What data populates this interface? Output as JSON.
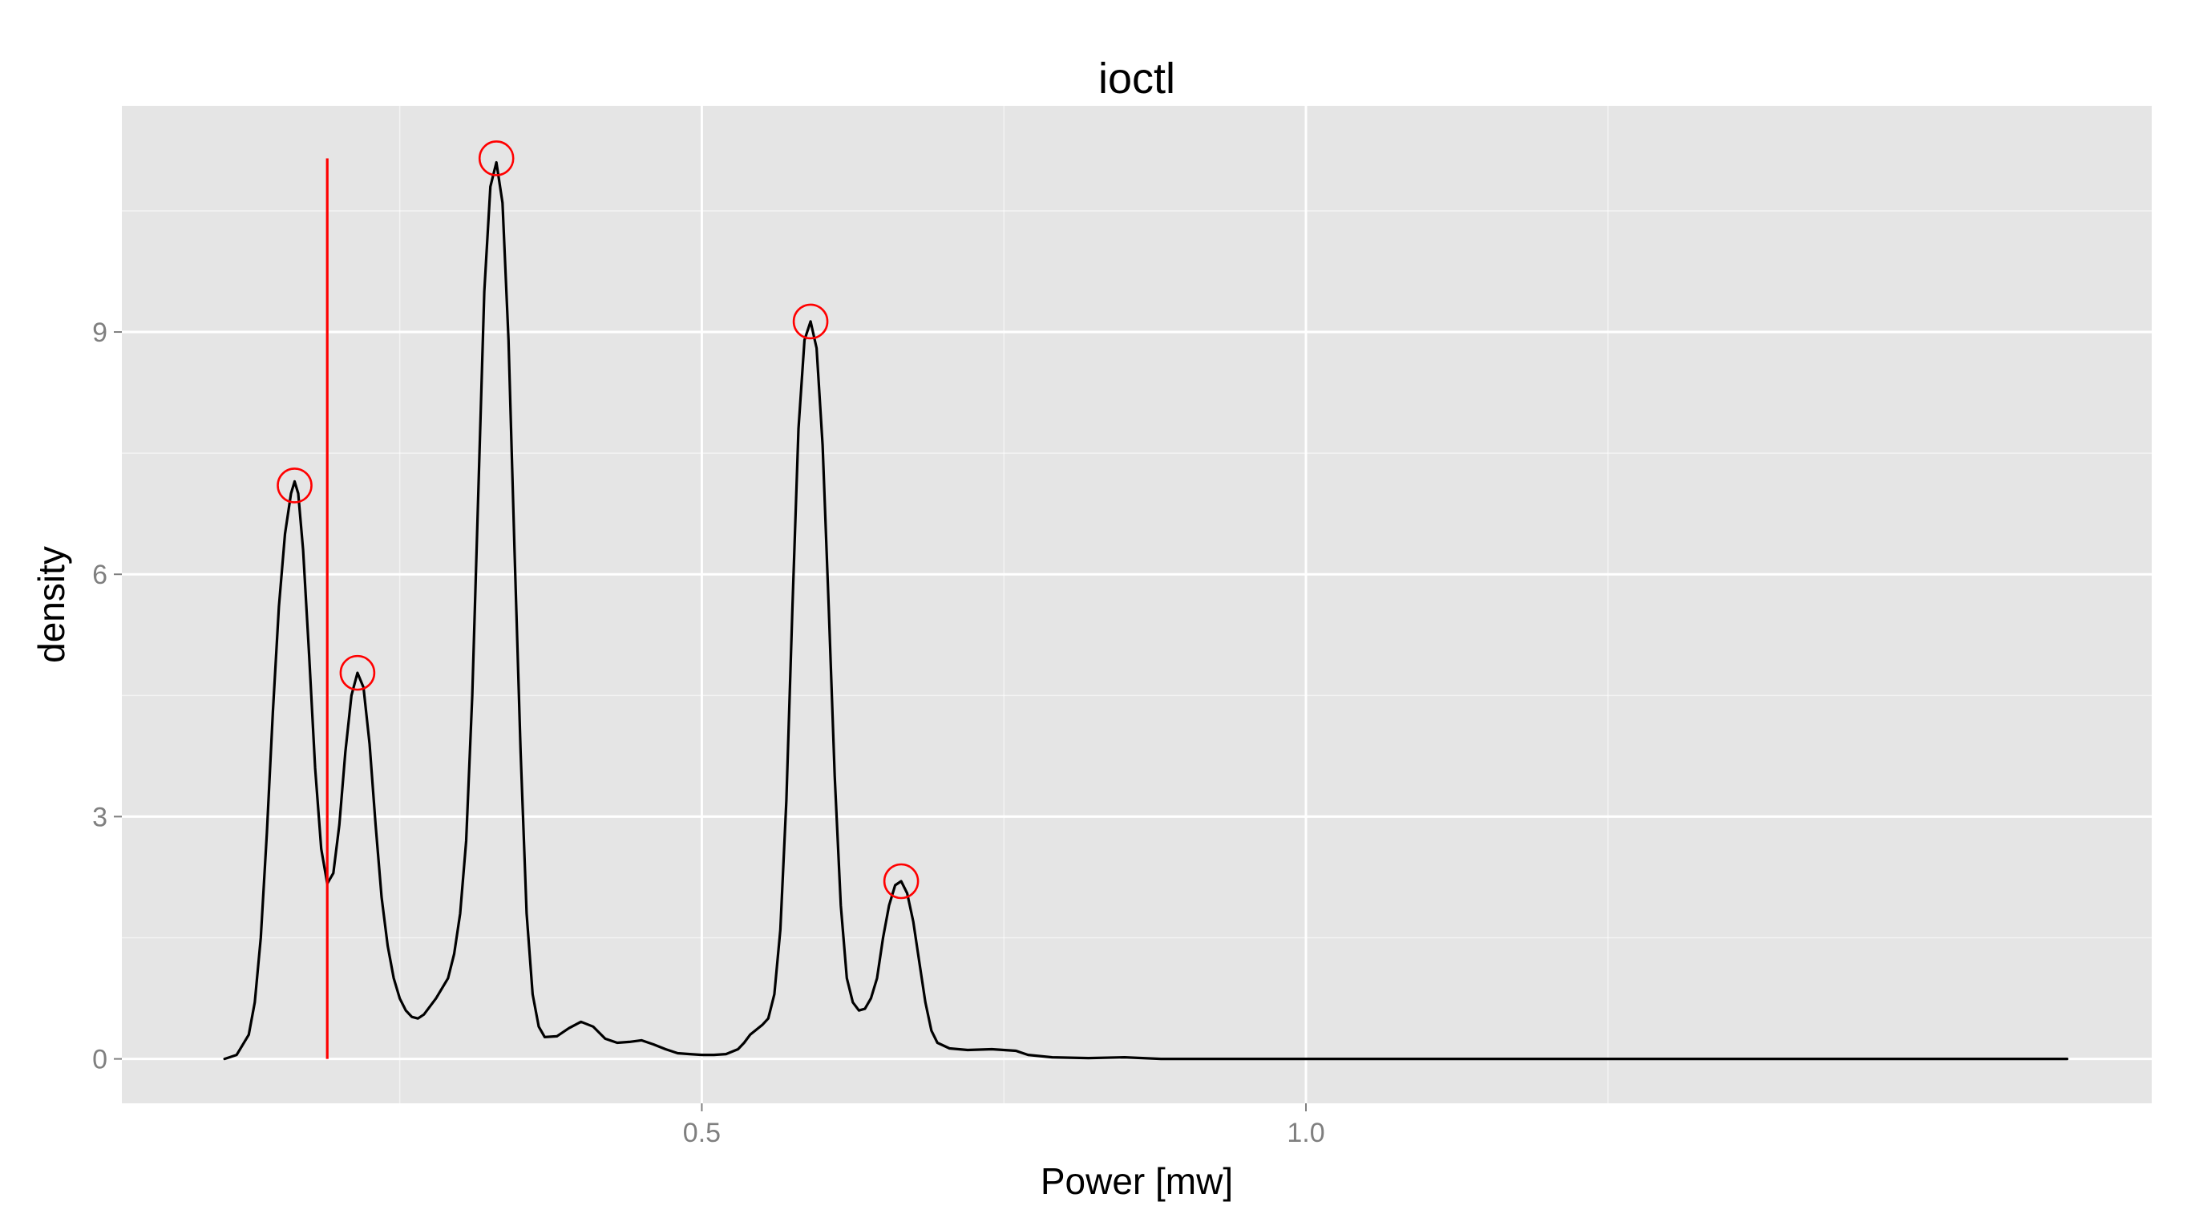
{
  "chart_data": {
    "type": "line",
    "title": "ioctl",
    "xlabel": "Power [mw]",
    "ylabel": "density",
    "xlim": [
      0.02,
      1.7
    ],
    "ylim": [
      -0.55,
      11.8
    ],
    "x_ticks": [
      {
        "value": 0.5,
        "label": "0.5"
      },
      {
        "value": 1.0,
        "label": "1.0"
      }
    ],
    "x_minor_ticks": [
      0.25,
      0.75,
      1.25
    ],
    "y_ticks": [
      {
        "value": 0,
        "label": "0"
      },
      {
        "value": 3,
        "label": "3"
      },
      {
        "value": 6,
        "label": "6"
      },
      {
        "value": 9,
        "label": "9"
      }
    ],
    "y_minor_ticks": [
      1.5,
      4.5,
      7.5,
      10.5
    ],
    "grid": true,
    "colors": {
      "panel": "#e5e5e5",
      "grid": "#ffffff",
      "curve": "#000000",
      "marker": "#ff0000",
      "axis_text": "#7f7f7f"
    },
    "series": [
      {
        "values": [
          [
            0.105,
            0.0
          ],
          [
            0.115,
            0.05
          ],
          [
            0.125,
            0.3
          ],
          [
            0.13,
            0.7
          ],
          [
            0.135,
            1.5
          ],
          [
            0.14,
            2.8
          ],
          [
            0.145,
            4.3
          ],
          [
            0.15,
            5.6
          ],
          [
            0.155,
            6.5
          ],
          [
            0.16,
            7.0
          ],
          [
            0.163,
            7.15
          ],
          [
            0.166,
            7.0
          ],
          [
            0.17,
            6.3
          ],
          [
            0.175,
            5.0
          ],
          [
            0.18,
            3.6
          ],
          [
            0.185,
            2.6
          ],
          [
            0.19,
            2.17
          ],
          [
            0.195,
            2.3
          ],
          [
            0.2,
            2.9
          ],
          [
            0.205,
            3.8
          ],
          [
            0.21,
            4.5
          ],
          [
            0.215,
            4.78
          ],
          [
            0.22,
            4.6
          ],
          [
            0.225,
            3.9
          ],
          [
            0.23,
            2.9
          ],
          [
            0.235,
            2.0
          ],
          [
            0.24,
            1.4
          ],
          [
            0.245,
            1.0
          ],
          [
            0.25,
            0.75
          ],
          [
            0.255,
            0.6
          ],
          [
            0.26,
            0.52
          ],
          [
            0.265,
            0.5
          ],
          [
            0.27,
            0.55
          ],
          [
            0.28,
            0.75
          ],
          [
            0.29,
            1.0
          ],
          [
            0.295,
            1.3
          ],
          [
            0.3,
            1.8
          ],
          [
            0.305,
            2.7
          ],
          [
            0.31,
            4.5
          ],
          [
            0.315,
            7.0
          ],
          [
            0.32,
            9.5
          ],
          [
            0.325,
            10.8
          ],
          [
            0.33,
            11.1
          ],
          [
            0.335,
            10.6
          ],
          [
            0.34,
            8.9
          ],
          [
            0.345,
            6.3
          ],
          [
            0.35,
            3.8
          ],
          [
            0.355,
            1.8
          ],
          [
            0.36,
            0.8
          ],
          [
            0.365,
            0.4
          ],
          [
            0.37,
            0.27
          ],
          [
            0.38,
            0.28
          ],
          [
            0.39,
            0.38
          ],
          [
            0.4,
            0.46
          ],
          [
            0.41,
            0.4
          ],
          [
            0.42,
            0.25
          ],
          [
            0.43,
            0.2
          ],
          [
            0.44,
            0.21
          ],
          [
            0.45,
            0.23
          ],
          [
            0.46,
            0.18
          ],
          [
            0.47,
            0.12
          ],
          [
            0.48,
            0.07
          ],
          [
            0.49,
            0.06
          ],
          [
            0.5,
            0.05
          ],
          [
            0.51,
            0.05
          ],
          [
            0.52,
            0.06
          ],
          [
            0.53,
            0.12
          ],
          [
            0.535,
            0.2
          ],
          [
            0.54,
            0.3
          ],
          [
            0.55,
            0.42
          ],
          [
            0.555,
            0.5
          ],
          [
            0.56,
            0.8
          ],
          [
            0.565,
            1.6
          ],
          [
            0.57,
            3.2
          ],
          [
            0.575,
            5.6
          ],
          [
            0.58,
            7.8
          ],
          [
            0.585,
            8.9
          ],
          [
            0.59,
            9.13
          ],
          [
            0.595,
            8.8
          ],
          [
            0.6,
            7.6
          ],
          [
            0.605,
            5.6
          ],
          [
            0.61,
            3.5
          ],
          [
            0.615,
            1.9
          ],
          [
            0.62,
            1.0
          ],
          [
            0.625,
            0.7
          ],
          [
            0.63,
            0.6
          ],
          [
            0.635,
            0.62
          ],
          [
            0.64,
            0.75
          ],
          [
            0.645,
            1.0
          ],
          [
            0.65,
            1.5
          ],
          [
            0.655,
            1.9
          ],
          [
            0.66,
            2.15
          ],
          [
            0.665,
            2.2
          ],
          [
            0.67,
            2.05
          ],
          [
            0.675,
            1.7
          ],
          [
            0.68,
            1.2
          ],
          [
            0.685,
            0.7
          ],
          [
            0.69,
            0.35
          ],
          [
            0.695,
            0.2
          ],
          [
            0.705,
            0.13
          ],
          [
            0.72,
            0.11
          ],
          [
            0.74,
            0.12
          ],
          [
            0.76,
            0.1
          ],
          [
            0.77,
            0.05
          ],
          [
            0.79,
            0.02
          ],
          [
            0.82,
            0.01
          ],
          [
            0.85,
            0.02
          ],
          [
            0.88,
            0.0
          ],
          [
            0.95,
            0.0
          ],
          [
            1.1,
            0.0
          ],
          [
            1.3,
            0.0
          ],
          [
            1.5,
            0.0
          ],
          [
            1.63,
            0.0
          ]
        ]
      }
    ],
    "peaks": [
      {
        "x": 0.163,
        "y": 7.1
      },
      {
        "x": 0.215,
        "y": 4.78
      },
      {
        "x": 0.33,
        "y": 11.15
      },
      {
        "x": 0.59,
        "y": 9.13
      },
      {
        "x": 0.665,
        "y": 2.2
      }
    ],
    "vline": {
      "x": 0.19,
      "y_from": 0,
      "y_to": 11.15
    }
  }
}
